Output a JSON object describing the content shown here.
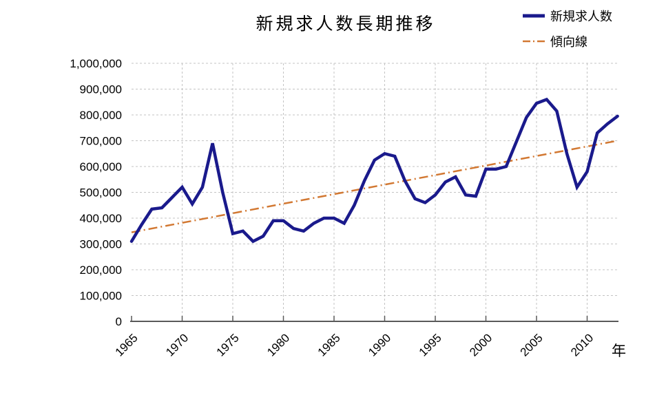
{
  "chart": {
    "title": "新規求人数長期推移",
    "x_axis_unit": "年",
    "legend": [
      {
        "label": "新規求人数",
        "style": "solid",
        "color": "#1A1A8C"
      },
      {
        "label": "傾向線",
        "style": "dashdot",
        "color": "#D27832"
      }
    ],
    "colors": {
      "series": "#1A1A8C",
      "trend": "#D27832",
      "grid": "#C3C3C3",
      "axis": "#595959",
      "text": "#000000"
    }
  },
  "chart_data": {
    "type": "line",
    "title": "新規求人数長期推移",
    "xlabel": "年",
    "ylabel": "",
    "ylim": [
      0,
      1000000
    ],
    "grid": true,
    "legend_position": "top-right",
    "y_tick_labels": [
      "0",
      "100,000",
      "200,000",
      "300,000",
      "400,000",
      "500,000",
      "600,000",
      "700,000",
      "800,000",
      "900,000",
      "1,000,000"
    ],
    "y_tick_step": 100000,
    "x_tick_labels": [
      "1965",
      "1970",
      "1975",
      "1980",
      "1985",
      "1990",
      "1995",
      "2000",
      "2005",
      "2010"
    ],
    "x": [
      1965,
      1966,
      1967,
      1968,
      1969,
      1970,
      1971,
      1972,
      1973,
      1974,
      1975,
      1976,
      1977,
      1978,
      1979,
      1980,
      1981,
      1982,
      1983,
      1984,
      1985,
      1986,
      1987,
      1988,
      1989,
      1990,
      1991,
      1992,
      1993,
      1994,
      1995,
      1996,
      1997,
      1998,
      1999,
      2000,
      2001,
      2002,
      2003,
      2004,
      2005,
      2006,
      2007,
      2008,
      2009,
      2010,
      2011,
      2012,
      2013
    ],
    "series": [
      {
        "name": "新規求人数",
        "color": "#1A1A8C",
        "style": "solid",
        "values": [
          310000,
          375000,
          435000,
          440000,
          480000,
          520000,
          455000,
          520000,
          690000,
          500000,
          340000,
          350000,
          310000,
          330000,
          390000,
          390000,
          360000,
          350000,
          380000,
          400000,
          400000,
          380000,
          450000,
          545000,
          625000,
          650000,
          640000,
          545000,
          475000,
          460000,
          490000,
          540000,
          560000,
          490000,
          485000,
          590000,
          590000,
          600000,
          695000,
          790000,
          845000,
          860000,
          815000,
          650000,
          520000,
          580000,
          730000,
          765000,
          795000
        ]
      },
      {
        "name": "傾向線",
        "color": "#D27832",
        "style": "dash-dot",
        "trend": true,
        "x": [
          1965,
          2013
        ],
        "values": [
          345000,
          700000
        ]
      }
    ]
  }
}
